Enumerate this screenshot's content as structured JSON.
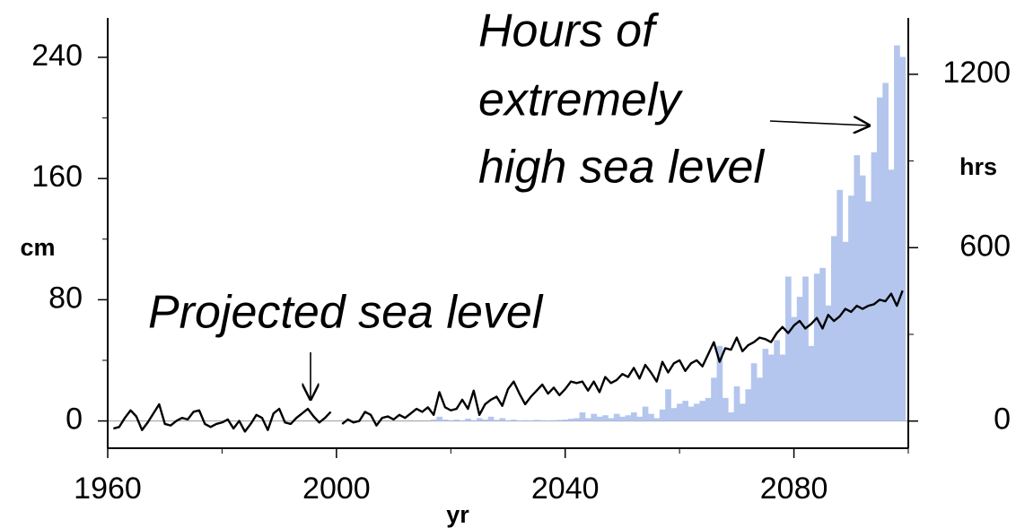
{
  "chart_data": {
    "type": "combo",
    "xlabel": "yr",
    "ylabel": "cm",
    "y2label": "hrs",
    "annotations": [
      "Hours of",
      "extremely",
      "high sea level",
      "Projected sea level"
    ],
    "xlim": [
      1960,
      2100
    ],
    "xticks": [
      1960,
      2000,
      2040,
      2080
    ],
    "xticks_minor": [
      1980,
      2020,
      2060,
      2100
    ],
    "ylim": [
      -18,
      266
    ],
    "yticks": [
      0,
      80,
      160,
      240
    ],
    "yticks_minor": [
      40,
      120,
      200
    ],
    "y2lim": [
      -94,
      1395
    ],
    "y2ticks": [
      0,
      600,
      1200
    ],
    "y2ticks_minor": [
      300,
      900
    ],
    "x": [
      1961,
      1962,
      1963,
      1964,
      1965,
      1966,
      1967,
      1968,
      1969,
      1970,
      1971,
      1972,
      1973,
      1974,
      1975,
      1976,
      1977,
      1978,
      1979,
      1980,
      1981,
      1982,
      1983,
      1984,
      1985,
      1986,
      1987,
      1988,
      1989,
      1990,
      1991,
      1992,
      1993,
      1994,
      1995,
      1996,
      1997,
      1998,
      1999,
      2000,
      2001,
      2002,
      2003,
      2004,
      2005,
      2006,
      2007,
      2008,
      2009,
      2010,
      2011,
      2012,
      2013,
      2014,
      2015,
      2016,
      2017,
      2018,
      2019,
      2020,
      2021,
      2022,
      2023,
      2024,
      2025,
      2026,
      2027,
      2028,
      2029,
      2030,
      2031,
      2032,
      2033,
      2034,
      2035,
      2036,
      2037,
      2038,
      2039,
      2040,
      2041,
      2042,
      2043,
      2044,
      2045,
      2046,
      2047,
      2048,
      2049,
      2050,
      2051,
      2052,
      2053,
      2054,
      2055,
      2056,
      2057,
      2058,
      2059,
      2060,
      2061,
      2062,
      2063,
      2064,
      2065,
      2066,
      2067,
      2068,
      2069,
      2070,
      2071,
      2072,
      2073,
      2074,
      2075,
      2076,
      2077,
      2078,
      2079,
      2080,
      2081,
      2082,
      2083,
      2084,
      2085,
      2086,
      2087,
      2088,
      2089,
      2090,
      2091,
      2092,
      2093,
      2094,
      2095,
      2096,
      2097,
      2098,
      2099
    ],
    "series": [
      {
        "type": "bar",
        "axis": "y2",
        "color": "#b4c6ee",
        "values": [
          0,
          0,
          0,
          0,
          0,
          0,
          0,
          0,
          0,
          0,
          0,
          0,
          0,
          0,
          0,
          0,
          0,
          0,
          0,
          0,
          0,
          0,
          0,
          0,
          0,
          0,
          0,
          0,
          0,
          0,
          0,
          0,
          0,
          0,
          0,
          0,
          0,
          0,
          0,
          0,
          0,
          0,
          0,
          0,
          0,
          0,
          0,
          0,
          0,
          0,
          0,
          0,
          0,
          0,
          0,
          0,
          5,
          15,
          5,
          3,
          5,
          2,
          8,
          3,
          10,
          5,
          15,
          4,
          10,
          3,
          5,
          2,
          3,
          2,
          4,
          3,
          2,
          3,
          4,
          5,
          8,
          10,
          30,
          10,
          25,
          15,
          20,
          10,
          25,
          15,
          20,
          30,
          15,
          50,
          25,
          10,
          40,
          110,
          45,
          60,
          70,
          50,
          60,
          70,
          80,
          150,
          260,
          80,
          30,
          120,
          60,
          110,
          200,
          150,
          250,
          230,
          280,
          230,
          500,
          360,
          430,
          500,
          260,
          510,
          530,
          400,
          640,
          800,
          620,
          780,
          920,
          850,
          760,
          930,
          1120,
          1170,
          870,
          1300,
          1260
        ]
      },
      {
        "type": "line",
        "color": "#000000",
        "values": [
          -5,
          -4,
          2,
          7,
          3,
          -6,
          -1,
          5,
          11,
          -2,
          -3,
          0,
          2,
          1,
          6,
          7,
          -2,
          -4,
          -2,
          -1,
          1,
          -5,
          0,
          -7,
          -2,
          4,
          2,
          -6,
          5,
          8,
          -1,
          -2,
          2,
          5,
          8,
          3,
          -1,
          2,
          6,
          null,
          -2,
          1,
          -1,
          0,
          6,
          4,
          -3,
          2,
          3,
          1,
          4,
          2,
          5,
          8,
          6,
          9,
          4,
          19,
          9,
          7,
          8,
          14,
          8,
          20,
          4,
          11,
          14,
          16,
          10,
          21,
          26,
          18,
          11,
          16,
          20,
          24,
          18,
          22,
          17,
          21,
          26,
          25,
          26,
          20,
          26,
          19,
          29,
          25,
          27,
          31,
          29,
          35,
          28,
          37,
          32,
          26,
          39,
          32,
          38,
          40,
          33,
          38,
          40,
          36,
          44,
          52,
          39,
          48,
          47,
          55,
          46,
          50,
          52,
          55,
          54,
          52,
          58,
          62,
          58,
          63,
          66,
          61,
          64,
          68,
          61,
          70,
          66,
          69,
          74,
          72,
          76,
          74,
          76,
          77,
          80,
          79,
          84,
          76,
          86
        ]
      }
    ]
  }
}
